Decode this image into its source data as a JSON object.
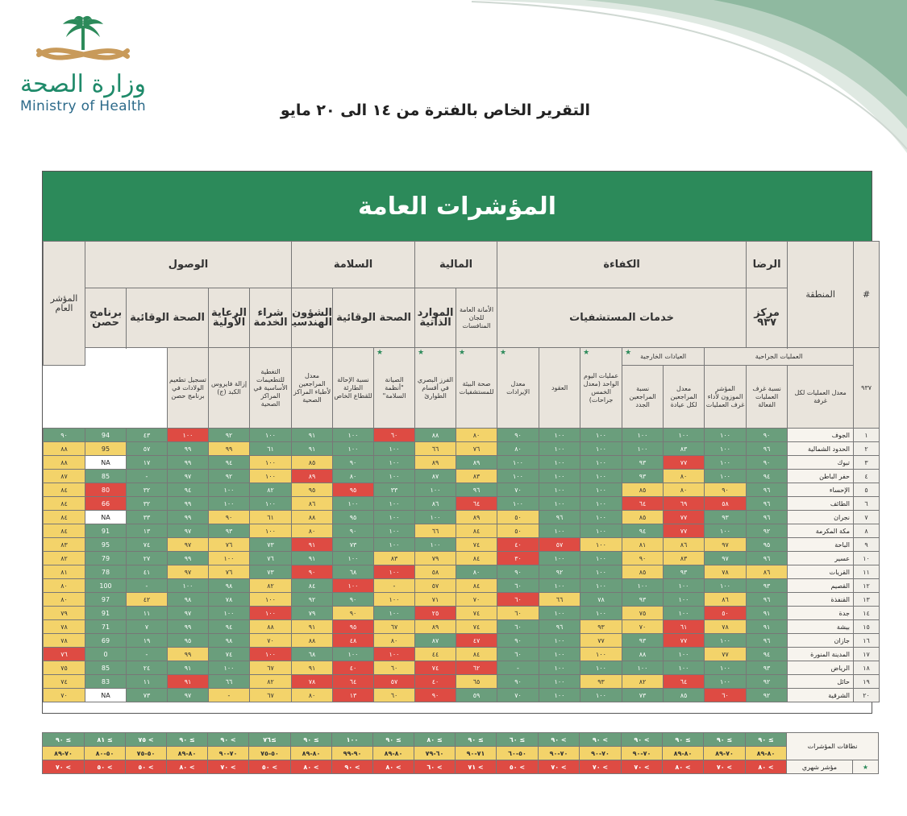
{
  "header": {
    "logo_ar": "وزارة الصحة",
    "logo_en": "Ministry of Health",
    "report_title": "التقرير الخاص بالفترة من ١٤ الى ٢٠ مايو"
  },
  "banner_title": "المؤشرات العامة",
  "columns": {
    "num": "#",
    "region": "المنطقة",
    "overall": "المؤشر العام",
    "groups": {
      "satisfaction": "الرضا",
      "efficiency": "الكفاءة",
      "finance": "المالية",
      "safety": "السلامة",
      "access": "الوصول"
    },
    "subgroups": {
      "center937": "مركز ٩٣٧",
      "hospital_services": "خدمات المستشفيات",
      "finance_sub1": "الأمانة العامة للجان المنافسات",
      "finance_sub2": "الموارد الذاتية",
      "safety_preventive": "الصحة الوقائية",
      "safety_eng": "الشؤون الهندسية",
      "access_purchase": "شراء الخدمة",
      "access_primary": "الرعاية الأولية",
      "access_preventive": "الصحة الوقائية",
      "access_hosn": "برنامج حصن"
    },
    "subsubgroups": {
      "surgical": "العمليات الجراحية",
      "outpatient": "العيادات الخارجية"
    },
    "leaves": [
      "٩٣٧",
      "معدل العمليات لكل غرفة",
      "نسبة غرف العمليات الفعالة",
      "المؤشر الموزون لأداء غرف العمليات",
      "معدل المراجعين لكل عيادة",
      "نسبة المراجعين الجدد",
      "عمليات اليوم الواحد (معدل الخمس جراحات)",
      "العقود",
      "معدل الإيرادات",
      "صحة البيئة للمستشفيات",
      "الفرز البصري في أقسام الطوارئ",
      "الصيانة \"أنظمة السلامة\"",
      "نسبة الإحالة الطارئة للقطاع الخاص",
      "معدل المراجعين لأطباء المراكز الصحية",
      "التغطية للتطعيمات الأساسية في المراكز الصحية",
      "إزالة فايروس الكبد (ج)",
      "تسجيل تطعيم الولادات في برنامج حصن"
    ]
  },
  "rows": [
    {
      "n": "١",
      "region": "الجوف",
      "cells": [
        "٩٠",
        "١٠٠",
        "١٠٠",
        "١٠٠",
        "١٠٠",
        "١٠٠",
        "٩٠",
        "٨٠",
        "٨٨",
        "٦٠",
        "١٠٠",
        "٩١",
        "١٠٠",
        "٩٢",
        "١٠٠",
        "٤٣",
        "94",
        "٩٠"
      ],
      "colors": "gggggggygrggggrgg"
    },
    {
      "n": "٢",
      "region": "الحدود الشمالية",
      "cells": [
        "٩٦",
        "١٠٠",
        "٨٣",
        "١٠٠",
        "١٠٠",
        "١٠٠",
        "٨٠",
        "٧٦",
        "٦٦",
        "١٠٠",
        "١٠٠",
        "٩١",
        "٦١",
        "٩٩",
        "٩٩",
        "٥٧",
        "95",
        "٨٨"
      ],
      "colors": "gggggggyyggggyggyy"
    },
    {
      "n": "٣",
      "region": "تبوك",
      "cells": [
        "٩٠",
        "١٠٠",
        "٧٧",
        "٩٣",
        "١٠٠",
        "١٠٠",
        "١٠٠",
        "٨٩",
        "٨٩",
        "١٠٠",
        "٩٠",
        "٨٥",
        "١٠٠",
        "٩٤",
        "٩٩",
        "١٧",
        "NA",
        "٨٨"
      ],
      "colors": "ggrgggggyggyyggggrwy"
    },
    {
      "n": "٤",
      "region": "حفر الباطن",
      "cells": [
        "٩٤",
        "١٠٠",
        "٨٠",
        "٩٣",
        "١٠٠",
        "١٠٠",
        "١٠٠",
        "٨٣",
        "٨٧",
        "١٠٠",
        "٨٠",
        "٨٩",
        "١٠٠",
        "٩٢",
        "٩٧",
        "-",
        "85",
        "٨٧"
      ],
      "colors": "ggyggggygggryggggryy"
    },
    {
      "n": "٥",
      "region": "الإحساء",
      "cells": [
        "٩٦",
        "٩٠",
        "٨٠",
        "٨٥",
        "١٠٠",
        "١٠٠",
        "٧٠",
        "٩٦",
        "١٠٠",
        "٣٣",
        "٩٥",
        "٩٥",
        "٨٢",
        "١٠٠",
        "٩٤",
        "٣٢",
        "80",
        "٨٤"
      ],
      "colors": "gyyyggggggryggggryy"
    },
    {
      "n": "٦",
      "region": "الطائف",
      "cells": [
        "٩٦",
        "٥٨",
        "٦٩",
        "٦٤",
        "١٠٠",
        "١٠٠",
        "١٠٠",
        "٦٤",
        "٨٦",
        "١٠٠",
        "١٠٠",
        "٨٦",
        "١٠٠",
        "١٠٠",
        "٩٩",
        "٣٢",
        "66",
        "٨٤"
      ],
      "colors": "grrrgggrgggyggggryy"
    },
    {
      "n": "٧",
      "region": "نجران",
      "cells": [
        "٩٦",
        "٩٣",
        "٧٧",
        "٨٥",
        "١٠٠",
        "٩٦",
        "٥٠",
        "٨٩",
        "١٠٠",
        "١٠٠",
        "٩٥",
        "٨٨",
        "٦١",
        "٩٠",
        "٩٩",
        "٣٣",
        "NA",
        "٨٤"
      ],
      "colors": "ggryggyygggyyyggrwy"
    },
    {
      "n": "٨",
      "region": "مكة المكرمة",
      "cells": [
        "٩٢",
        "١٠٠",
        "٧٧",
        "٩٤",
        "١٠٠",
        "١٠٠",
        "٥٠",
        "٨٤",
        "٦٦",
        "١٠٠",
        "٩٠",
        "٨٠",
        "١٠٠",
        "٩٣",
        "٩٧",
        "١٣",
        "91",
        "٨٤"
      ],
      "colors": "ggrgggyyyggyyggggryy"
    },
    {
      "n": "٩",
      "region": "الباحة",
      "cells": [
        "٩٥",
        "٩٧",
        "٨٦",
        "٨١",
        "١٠٠",
        "٥٧",
        "٤٠",
        "٧٤",
        "١٠٠",
        "١٠٠",
        "٧٣",
        "٩١",
        "٧٣",
        "٧٦",
        "٩٧",
        "٧٤",
        "95",
        "٨٣"
      ],
      "colors": "gyyyyrrygggrgyyggyyy"
    },
    {
      "n": "١٠",
      "region": "عسير",
      "cells": [
        "٩٦",
        "٩٧",
        "٨٣",
        "٩٠",
        "١٠٠",
        "١٠٠",
        "٣٠",
        "٨٤",
        "٧٩",
        "٨٣",
        "١٠٠",
        "٩١",
        "٧٦",
        "١٠٠",
        "٩٩",
        "٢٧",
        "79",
        "٨٢"
      ],
      "colors": "ggyyggryyygggyggggryy"
    },
    {
      "n": "١١",
      "region": "القريات",
      "cells": [
        "٨٦",
        "٧٨",
        "٩٣",
        "٨٥",
        "١٠٠",
        "٩٢",
        "٩٠",
        "٨٠",
        "٥٨",
        "١٠٠",
        "٦٨",
        "٩٠",
        "٧٣",
        "٧٦",
        "٩٧",
        "٤١",
        "78",
        "٨١"
      ],
      "colors": "yygyggggyrgrgyyggryy"
    },
    {
      "n": "١٢",
      "region": "القصيم",
      "cells": [
        "٩٣",
        "١٠٠",
        "١٠٠",
        "١٠٠",
        "١٠٠",
        "١٠٠",
        "٦٠",
        "٨٤",
        "٥٧",
        "-",
        "١٠٠",
        "٨٤",
        "٨٢",
        "٩٨",
        "١٠٠",
        "-",
        "100",
        "٨٠"
      ],
      "colors": "gggggggyyyrgyggggggy"
    },
    {
      "n": "١٣",
      "region": "القنفذة",
      "cells": [
        "٩٦",
        "٨٦",
        "١٠٠",
        "٩٣",
        "٧٨",
        "٦٦",
        "٦٠",
        "٧٠",
        "٧١",
        "١٠٠",
        "٩٠",
        "٩٢",
        "١٠٠",
        "٧٨",
        "٩٨",
        "٤٢",
        "97",
        "٨٠"
      ],
      "colors": "gygggyryyyggyggyggryy"
    },
    {
      "n": "١٤",
      "region": "جدة",
      "cells": [
        "٩١",
        "٥٠",
        "١٠٠",
        "٧٥",
        "١٠٠",
        "١٠٠",
        "٦٠",
        "٧٤",
        "٢٥",
        "١٠٠",
        "٩٠",
        "٧٩",
        "١٠٠",
        "١٠٠",
        "٩٧",
        "١١",
        "91",
        "٧٩"
      ],
      "colors": "grgyggyyrgygrgggggryy"
    },
    {
      "n": "١٥",
      "region": "بيشة",
      "cells": [
        "٩١",
        "٧٨",
        "٦١",
        "٧٠",
        "٩٣",
        "٩٦",
        "٦٠",
        "٧٤",
        "٨٩",
        "٦٧",
        "٩٥",
        "٩١",
        "٨٨",
        "٩٤",
        "٩٩",
        "٧",
        "71",
        "٧٨"
      ],
      "colors": "gyryyggyyyryyggggryy"
    },
    {
      "n": "١٦",
      "region": "جازان",
      "cells": [
        "٩٦",
        "١٠٠",
        "٧٧",
        "٩٣",
        "٧٧",
        "١٠٠",
        "٩٠",
        "٤٧",
        "٨٧",
        "٨٠",
        "٤٨",
        "٨٨",
        "٧٠",
        "٩٨",
        "٩٥",
        "١٩",
        "69",
        "٧٨"
      ],
      "colors": "ggrgyggrgyryyggggryy"
    },
    {
      "n": "١٧",
      "region": "المدينة المنورة",
      "cells": [
        "٩٤",
        "٧٧",
        "١٠٠",
        "٨٨",
        "١٠٠",
        "١٠٠",
        "٦٠",
        "٨٤",
        "٤٤",
        "١٠٠",
        "١٠٠",
        "٦٨",
        "١٠٠",
        "٧٤",
        "٩٩",
        "-",
        "0",
        "٧٦"
      ],
      "colors": "gyggyggyyrggrgyggyrr"
    },
    {
      "n": "١٨",
      "region": "الرياض",
      "cells": [
        "٩٣",
        "١٠٠",
        "١٠٠",
        "١٠٠",
        "١٠٠",
        "١٠٠",
        "-",
        "٦٢",
        "٧٤",
        "٦٠",
        "٤٠",
        "٩١",
        "٦٧",
        "١٠٠",
        "٩١",
        "٢٤",
        "85",
        "٧٥"
      ],
      "colors": "gggggggrryryyggggryy"
    },
    {
      "n": "١٩",
      "region": "حائل",
      "cells": [
        "٩٢",
        "١٠٠",
        "٦٤",
        "٨٢",
        "٩٣",
        "١٠٠",
        "٩٠",
        "٦٥",
        "٤٠",
        "٥٧",
        "٦٤",
        "٧٨",
        "٨٢",
        "٦٦",
        "٩١",
        "١١",
        "83",
        "٧٤"
      ],
      "colors": "ggryyggyrrrrygrggryy"
    },
    {
      "n": "٢٠",
      "region": "الشرقية",
      "cells": [
        "٩٢",
        "٦٠",
        "٨٥",
        "٧٣",
        "١٠٠",
        "١٠٠",
        "٧٠",
        "٥٩",
        "٩٠",
        "٦٠",
        "١٣",
        "٨٠",
        "٦٧",
        "-",
        "٩٧",
        "٧٣",
        "NA",
        "٧٠"
      ],
      "colors": "grggggggryryyyggrwy"
    }
  ],
  "ranges": {
    "label": "نطاقات المؤشرات",
    "monthly_label": "مؤشر شهري",
    "green": [
      "≥ ٩٠",
      "≥ ٩٠",
      "≥ ٩٠",
      "> ٩٠",
      "> ٩٠",
      "> ٩٠",
      "≥ ٦٠",
      "≥ ٩٠",
      "≥ ٨٠",
      "≥ ٩٠",
      "١٠٠",
      "≥ ٩٠",
      "≥٧٦",
      "> ٩٠",
      "≥ ٩٠",
      "> ٧٥",
      "≥ ٨١",
      "≥ ٩٠"
    ],
    "yellow": [
      "٨٠-٨٩",
      "٧٠-٨٩",
      "٨٠-٨٩",
      "٧٠-٩٠",
      "٧٠-٩٠",
      "٧٠-٩٠",
      "٥٠-٦٠",
      "٧١-٩٠",
      "٦٠-٧٩",
      "٨٠-٨٩",
      "٩٠-٩٩",
      "٨٠-٨٩",
      "٥٠-٧٥",
      "٧٠-٩٠",
      "٨٠-٨٩",
      "٥٠-٧٥",
      "٥٠-٨٠",
      "٧٠-٨٩"
    ],
    "red": [
      "> ٨٠",
      "> ٧٠",
      "> ٨٠",
      "> ٧٠",
      "> ٧٠",
      "> ٧٠",
      "> ٥٠",
      "> ٧١",
      "> ٦٠",
      "> ٨٠",
      "> ٩٠",
      "> ٨٠",
      "> ٥٠",
      "> ٧٠",
      "> ٨٠",
      "> ٥٠",
      "> ٥٠",
      "> ٧٠"
    ]
  },
  "colors": {
    "green": "#6a9e7c",
    "yellow": "#f3d36a",
    "red": "#de4b43",
    "header_green": "#2c8a5a"
  }
}
